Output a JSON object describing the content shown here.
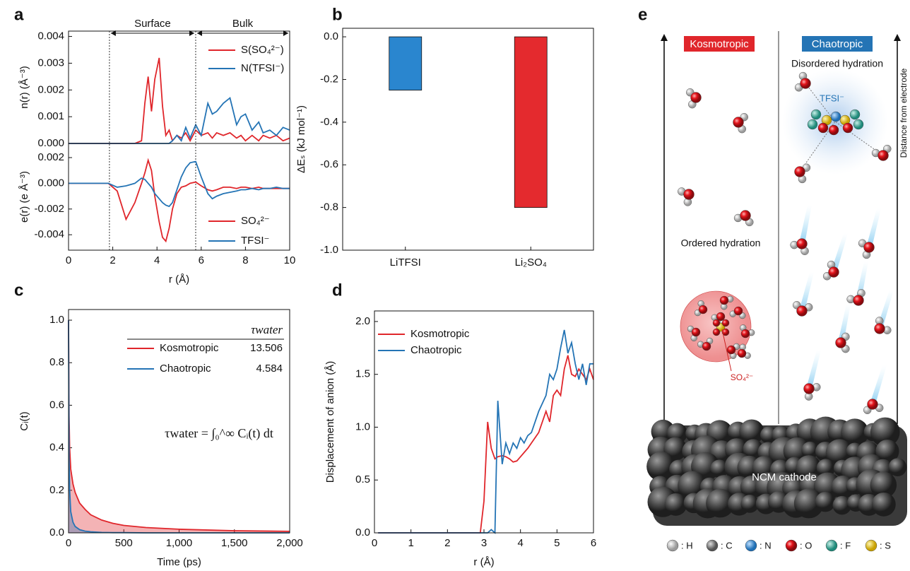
{
  "chart_data": [
    {
      "panel": "a",
      "type": "line",
      "ylabel": "n(r) (Å⁻³)",
      "legend": "upper right",
      "annotations": {
        "surface": "Surface",
        "bulk": "Bulk"
      },
      "vlines": [
        1.85,
        5.75
      ],
      "xlim": [
        0,
        10
      ],
      "ylim": [
        0,
        0.0042
      ],
      "yticks": [
        {
          "value": 0,
          "label": "0.000"
        },
        0.001,
        0.002,
        0.003,
        0.004
      ],
      "x": [
        0,
        1.8,
        2.2,
        2.6,
        3.0,
        3.3,
        3.45,
        3.6,
        3.75,
        3.9,
        4.1,
        4.25,
        4.4,
        4.55,
        4.7,
        4.9,
        5.1,
        5.3,
        5.5,
        5.75,
        6.0,
        6.3,
        6.5,
        6.7,
        7.0,
        7.3,
        7.6,
        7.8,
        8.0,
        8.3,
        8.6,
        8.8,
        9.1,
        9.4,
        9.7,
        10
      ],
      "series": [
        {
          "name": "S(SO₄²⁻)",
          "color": "#e0262b",
          "values": [
            0,
            0,
            0,
            0,
            0,
            0.0001,
            0.0015,
            0.0025,
            0.0012,
            0.0024,
            0.0032,
            0.0014,
            0.0003,
            0.0005,
            0.0001,
            0.0003,
            0.0002,
            0.0004,
            0.0001,
            0.0005,
            0.0003,
            0.0004,
            0.0002,
            0.0004,
            0.0003,
            0.0004,
            0.0002,
            0.0003,
            0.0001,
            0.0003,
            0.0001,
            0.0003,
            0.0002,
            0.0003,
            0.0001,
            0.0002
          ]
        },
        {
          "name": "N(TFSI⁻)",
          "color": "#2474b5",
          "values": [
            0,
            0,
            0,
            0,
            0,
            0,
            0,
            0,
            0,
            0,
            0,
            0,
            0,
            0,
            0.0001,
            0.0003,
            0.0001,
            0.0006,
            0.0002,
            0.0007,
            0.0003,
            0.0015,
            0.0011,
            0.0012,
            0.0015,
            0.0017,
            0.0007,
            0.001,
            0.0011,
            0.0005,
            0.0008,
            0.0004,
            0.0005,
            0.0003,
            0.0006,
            0.0005
          ]
        }
      ]
    },
    {
      "type": "line",
      "ylabel": "e(r) (e Å⁻³)",
      "xlabel": "r (Å)",
      "legend": "lower right",
      "xlim": [
        0,
        10
      ],
      "ylim": [
        -0.0052,
        0.0031
      ],
      "xticks": [
        0,
        2,
        4,
        6,
        8,
        10
      ],
      "yticks": [
        -0.004,
        -0.002,
        {
          "value": 0,
          "label": "0.000"
        },
        0.002
      ],
      "x": [
        0,
        1.8,
        2.2,
        2.6,
        3.0,
        3.3,
        3.45,
        3.6,
        3.75,
        3.9,
        4.1,
        4.25,
        4.4,
        4.55,
        4.7,
        4.9,
        5.1,
        5.3,
        5.5,
        5.75,
        6.0,
        6.3,
        6.5,
        6.7,
        7.0,
        7.3,
        7.6,
        7.8,
        8.0,
        8.3,
        8.6,
        8.8,
        9.1,
        9.4,
        9.7,
        10
      ],
      "series": [
        {
          "name": "SO₄²⁻",
          "color": "#e0262b",
          "values": [
            0,
            0,
            -0.0006,
            -0.0028,
            -0.0015,
            0,
            0.0008,
            0.0018,
            0.001,
            -0.001,
            -0.003,
            -0.0042,
            -0.0045,
            -0.0035,
            -0.002,
            -0.0008,
            -0.0003,
            -0.0002,
            0,
            0.0001,
            -0.0002,
            -0.0005,
            -0.0006,
            -0.0005,
            -0.0003,
            -0.0003,
            -0.0004,
            -0.0003,
            -0.0003,
            -0.0004,
            -0.0003,
            -0.0004,
            -0.0004,
            -0.0004,
            -0.0004,
            -0.0004
          ]
        },
        {
          "name": "TFSI⁻",
          "color": "#2474b5",
          "values": [
            0,
            0,
            -0.0003,
            -0.0002,
            0,
            0.0004,
            0.0003,
            0,
            -0.0003,
            -0.0008,
            -0.0012,
            -0.0015,
            -0.0017,
            -0.0018,
            -0.0015,
            -0.0005,
            0.0005,
            0.0012,
            0.0016,
            0.0017,
            0.0005,
            -0.0008,
            -0.0012,
            -0.001,
            -0.0008,
            -0.0007,
            -0.0006,
            -0.0005,
            -0.0005,
            -0.0004,
            -0.0005,
            -0.0004,
            -0.0004,
            -0.0003,
            -0.0004,
            -0.0004
          ]
        }
      ]
    },
    {
      "panel": "b",
      "type": "bar",
      "ylabel": "ΔEₛ (kJ mol⁻¹)",
      "categories": [
        "LiTFSI",
        "Li₂SO₄"
      ],
      "values": [
        -0.25,
        -0.8
      ],
      "colors": [
        "#2a86cf",
        "#e42a2e"
      ],
      "ylim": [
        -1,
        0.04
      ],
      "yticks": [
        {
          "value": -1,
          "label": "-1.0"
        },
        -0.8,
        -0.6,
        -0.4,
        -0.2,
        {
          "value": 0,
          "label": "0.0"
        }
      ]
    },
    {
      "panel": "c",
      "type": "area",
      "ylabel": "Cᵢ(t)",
      "xlabel": "Time (ps)",
      "legend": "upper right",
      "legend_header": "τwater",
      "formula": "τwater = ∫₀^∞ Cᵢ(t) dt",
      "xlim": [
        0,
        2000
      ],
      "ylim": [
        0,
        1.05
      ],
      "xticks": [
        0,
        500,
        {
          "value": 1000,
          "label": "1,000"
        },
        {
          "value": 1500,
          "label": "1,500"
        },
        {
          "value": 2000,
          "label": "2,000"
        }
      ],
      "yticks": [
        {
          "value": 0,
          "label": "0.0"
        },
        0.2,
        0.4,
        0.6,
        0.8,
        {
          "value": 1,
          "label": "1.0"
        }
      ],
      "x": [
        0,
        5,
        10,
        20,
        40,
        60,
        100,
        150,
        200,
        300,
        400,
        500,
        700,
        1000,
        1500,
        2000
      ],
      "series": [
        {
          "name": "Kosmotropic",
          "color": "#e0262b",
          "tau": 13.506,
          "values": [
            1.0,
            0.55,
            0.4,
            0.3,
            0.23,
            0.19,
            0.14,
            0.11,
            0.085,
            0.06,
            0.045,
            0.035,
            0.025,
            0.017,
            0.01,
            0.007
          ]
        },
        {
          "name": "Chaotropic",
          "color": "#2474b5",
          "tau": 4.584,
          "values": [
            1.0,
            0.35,
            0.2,
            0.1,
            0.05,
            0.03,
            0.015,
            0.008,
            0.005,
            0.002,
            0.001,
            0.001,
            0,
            0,
            0,
            0
          ]
        }
      ]
    },
    {
      "panel": "d",
      "type": "line",
      "ylabel": "Displacement of anion (Å)",
      "xlabel": "r (Å)",
      "legend": "upper left",
      "xlim": [
        0,
        6
      ],
      "ylim": [
        0,
        2.1
      ],
      "xticks": [
        0,
        1,
        2,
        3,
        4,
        5,
        6
      ],
      "yticks": [
        {
          "value": 0,
          "label": "0.0"
        },
        0.5,
        {
          "value": 1,
          "label": "1.0"
        },
        1.5,
        {
          "value": 2,
          "label": "2.0"
        }
      ],
      "x": [
        0.1,
        2.9,
        3.0,
        3.1,
        3.2,
        3.3,
        3.38,
        3.5,
        3.6,
        3.7,
        3.8,
        3.9,
        4.0,
        4.1,
        4.2,
        4.3,
        4.5,
        4.7,
        4.8,
        4.9,
        5.0,
        5.1,
        5.2,
        5.3,
        5.4,
        5.5,
        5.6,
        5.7,
        5.8,
        5.9,
        6.0
      ],
      "series": [
        {
          "name": "Kosmotropic",
          "color": "#e0262b",
          "values": [
            0,
            0,
            0.3,
            1.05,
            0.8,
            0.7,
            0.72,
            0.73,
            0.72,
            0.7,
            0.67,
            0.68,
            0.72,
            0.76,
            0.8,
            0.85,
            0.95,
            1.15,
            1.05,
            1.3,
            1.35,
            1.3,
            1.55,
            1.68,
            1.5,
            1.48,
            1.55,
            1.5,
            1.45,
            1.55,
            1.45
          ]
        },
        {
          "name": "Chaotropic",
          "color": "#2474b5",
          "values": [
            0,
            0,
            0,
            0,
            0.03,
            0,
            1.25,
            0.65,
            0.85,
            0.75,
            0.85,
            0.8,
            0.9,
            0.85,
            0.92,
            0.95,
            1.15,
            1.3,
            1.5,
            1.45,
            1.55,
            1.75,
            1.92,
            1.7,
            1.8,
            1.6,
            1.45,
            1.6,
            1.4,
            1.6,
            1.6
          ]
        }
      ]
    }
  ],
  "schematic": {
    "panel": "e",
    "kosmotropic": "Kosmotropic",
    "chaotropic": "Chaotropic",
    "disordered": "Disordered hydration",
    "tfsi": "TFSI⁻",
    "axis": "Distance from electrode",
    "ordered": "Ordered hydration",
    "so4": "SO₄²⁻",
    "cathode": "NCM cathode",
    "legend": [
      ": H",
      ": C",
      ": N",
      ": O",
      ": F",
      ": S"
    ]
  }
}
